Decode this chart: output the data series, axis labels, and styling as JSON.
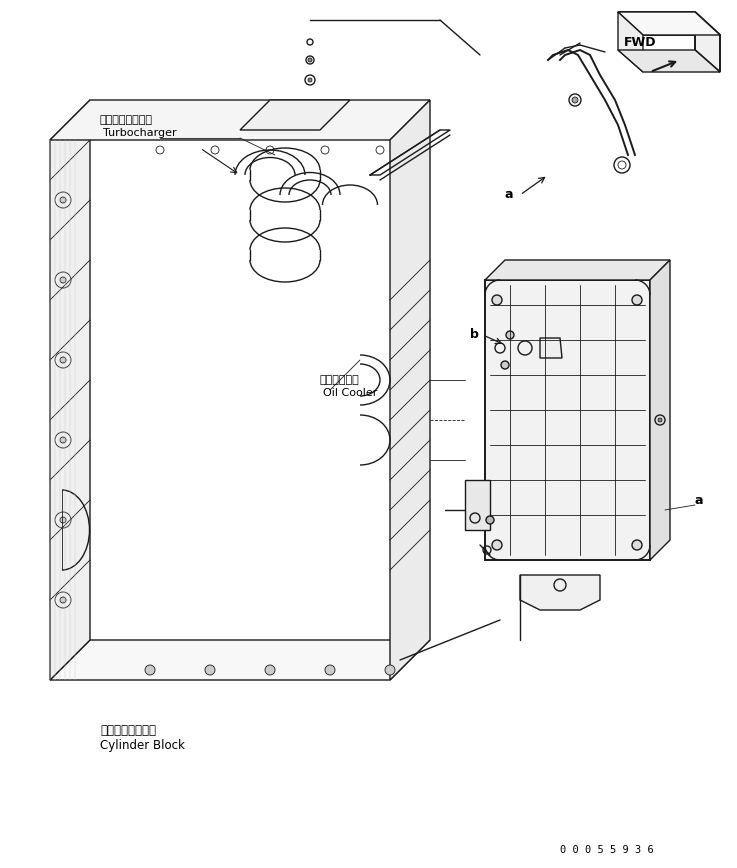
{
  "title": "",
  "bg_color": "#ffffff",
  "line_color": "#000000",
  "fig_width": 7.37,
  "fig_height": 8.68,
  "dpi": 100,
  "labels": {
    "turbocharger_jp": "ターボチャージャ",
    "turbocharger_en": "Turbocharger",
    "oil_cooler_jp": "オイルクーラ",
    "oil_cooler_en": "Oil Cooler",
    "cylinder_block_jp": "シリンダブロック",
    "cylinder_block_en": "Cylinder Block",
    "label_a": "a",
    "label_b": "b",
    "fwd": "FWD",
    "part_number": "0 0 0 5 5 9 3 6"
  },
  "colors": {
    "lines": "#1a1a1a",
    "background": "#ffffff",
    "text": "#000000"
  }
}
